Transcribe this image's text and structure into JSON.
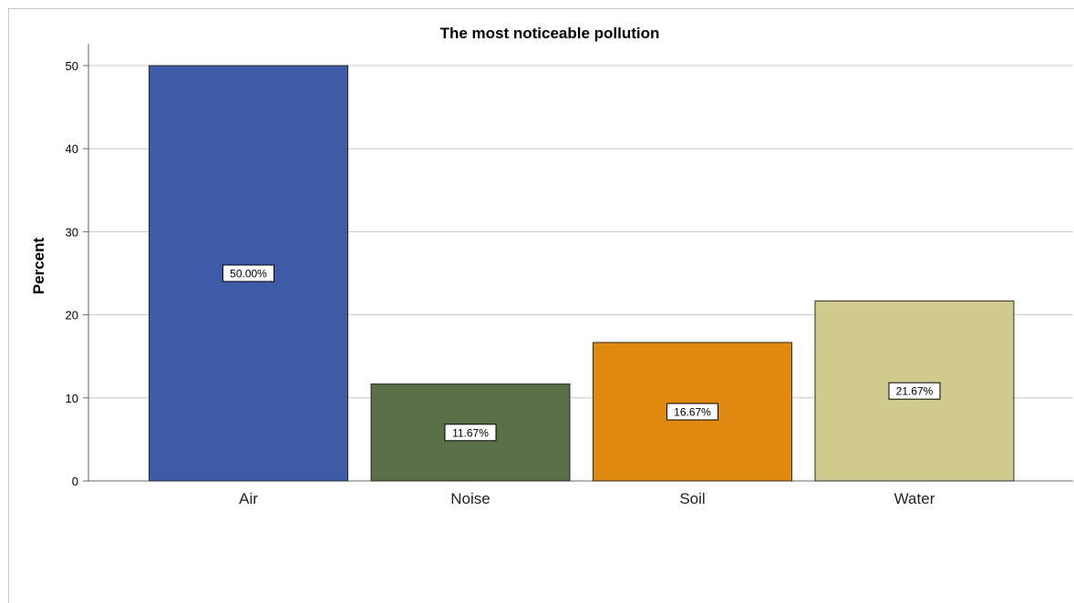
{
  "chart_data": {
    "type": "bar",
    "title": "The most noticeable pollution",
    "xlabel": "",
    "ylabel": "Percent",
    "categories": [
      "Air",
      "Noise",
      "Soil",
      "Water"
    ],
    "values": [
      50.0,
      11.67,
      16.67,
      21.67
    ],
    "data_labels": [
      "50.00%",
      "11.67%",
      "16.67%",
      "21.67%"
    ],
    "colors": [
      "#3e5ba8",
      "#5a6e47",
      "#e0890f",
      "#d0ca8e"
    ],
    "ylim": [
      0,
      50
    ],
    "yticks": [
      0,
      10,
      20,
      30,
      40,
      50
    ],
    "grid": true,
    "legend": "none"
  }
}
